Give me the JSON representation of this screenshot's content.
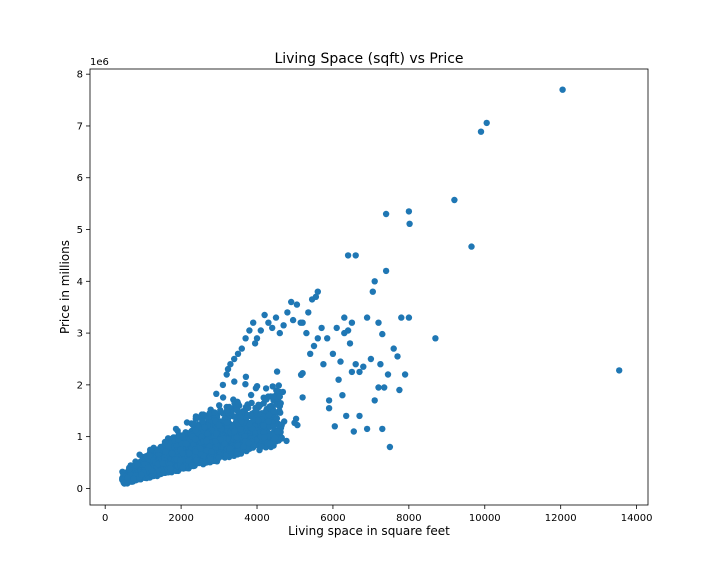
{
  "chart_data": {
    "type": "scatter",
    "title": "Living Space (sqft) vs Price",
    "xlabel": "Living space in square feet",
    "ylabel": "Price in millions",
    "y_offset_label": "1e6",
    "xlim": [
      -400,
      14300
    ],
    "ylim": [
      -0.32,
      8.1
    ],
    "x_ticks": [
      0,
      2000,
      4000,
      6000,
      8000,
      10000,
      12000,
      14000
    ],
    "x_tick_labels": [
      "0",
      "2000",
      "4000",
      "6000",
      "8000",
      "10000",
      "12000",
      "14000"
    ],
    "y_ticks": [
      0,
      1,
      2,
      3,
      4,
      5,
      6,
      7,
      8
    ],
    "y_tick_labels": [
      "0",
      "1",
      "2",
      "3",
      "4",
      "5",
      "6",
      "7",
      "8"
    ],
    "grid": false,
    "marker_color": "#1f77b4",
    "series": [
      {
        "x": [
          12050,
          10050,
          9900,
          9200,
          9650,
          7400,
          8000,
          8020,
          6400,
          6600,
          7100,
          7050,
          7400,
          13540,
          8700,
          6300,
          6500,
          6900,
          7200,
          7800,
          8000,
          7600,
          7300,
          7250,
          7450,
          7700,
          7900,
          7750,
          7200,
          7000,
          6800,
          6500,
          6450,
          6600,
          6300,
          6100,
          6000,
          6200,
          6400,
          6700,
          7100,
          7350,
          7500,
          7300,
          6900,
          6700,
          6550,
          6350,
          6250,
          6050,
          5900,
          5700,
          5600,
          5500,
          5400,
          5300,
          5200,
          5050,
          4900,
          4800,
          4700,
          4600,
          4500,
          4400,
          4300,
          4200,
          4100,
          4000,
          3950,
          3900,
          3800,
          3700,
          3600,
          3500,
          3400,
          3300,
          3200,
          3100,
          5600,
          5450,
          5550,
          5350,
          5150,
          4950,
          5850,
          5750,
          6150,
          5900
        ],
        "y": [
          7.7,
          7.06,
          6.89,
          5.57,
          4.67,
          5.3,
          5.35,
          5.11,
          4.5,
          4.5,
          4.0,
          3.8,
          4.2,
          2.28,
          2.9,
          3.3,
          3.2,
          3.3,
          3.2,
          3.3,
          3.3,
          2.7,
          2.98,
          2.4,
          2.2,
          2.55,
          2.2,
          1.9,
          1.95,
          2.5,
          2.35,
          2.25,
          2.8,
          2.4,
          3.0,
          3.1,
          2.6,
          2.45,
          3.05,
          2.25,
          1.7,
          1.95,
          0.8,
          1.15,
          1.15,
          1.4,
          1.1,
          1.4,
          1.8,
          1.2,
          1.55,
          3.1,
          2.9,
          2.75,
          2.6,
          3.0,
          3.2,
          3.55,
          3.6,
          3.4,
          3.15,
          3.0,
          3.3,
          3.1,
          3.2,
          3.35,
          3.05,
          2.9,
          2.8,
          3.2,
          3.05,
          2.9,
          2.7,
          2.6,
          2.5,
          2.4,
          2.2,
          2.0,
          3.8,
          3.65,
          3.7,
          3.4,
          3.2,
          3.25,
          2.9,
          2.4,
          2.1,
          1.7
        ]
      }
    ]
  }
}
